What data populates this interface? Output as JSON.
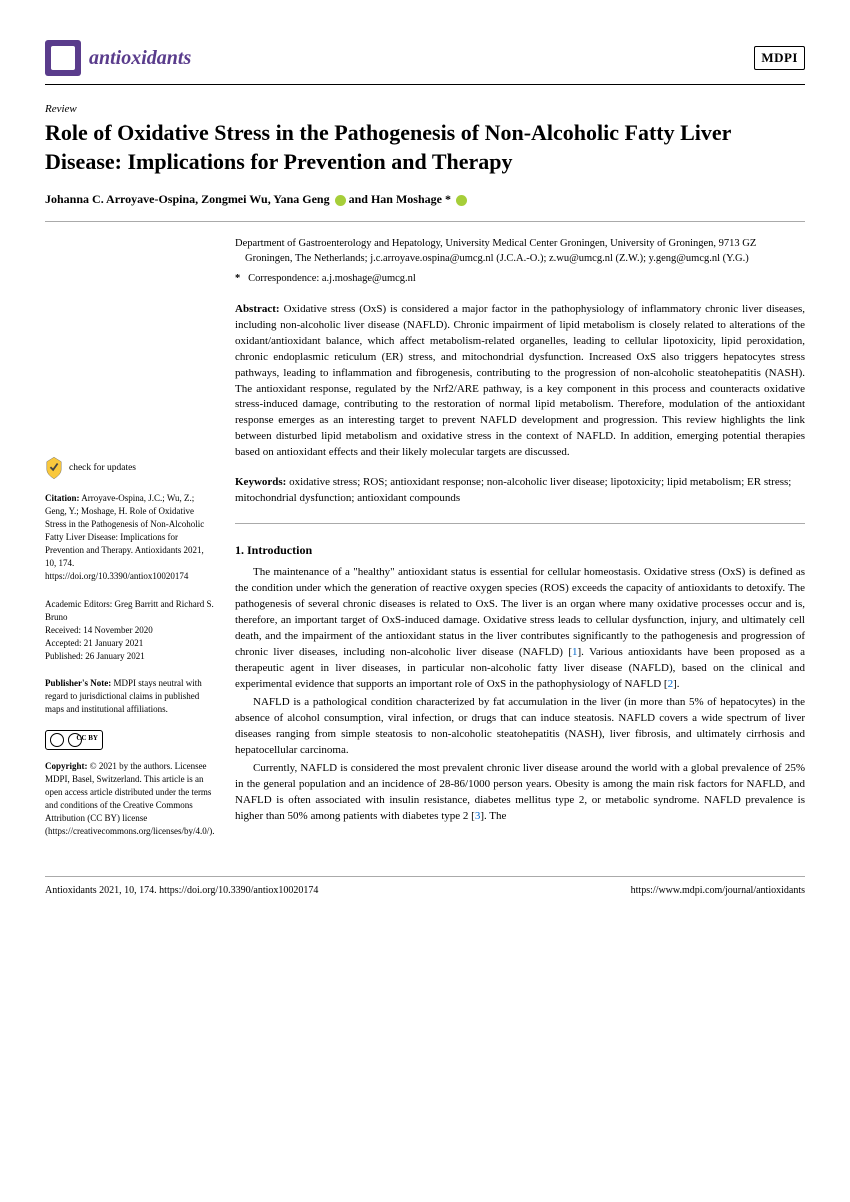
{
  "journal": {
    "name": "antioxidants",
    "publisher": "MDPI",
    "logo_bg": "#5a3c8c"
  },
  "article": {
    "type": "Review",
    "title": "Role of Oxidative Stress in the Pathogenesis of Non-Alcoholic Fatty Liver Disease: Implications for Prevention and Therapy",
    "authors_html": "Johanna C. Arroyave-Ospina, Zongmei Wu, Yana Geng",
    "author_last": "and Han Moshage *",
    "affiliation": "Department of Gastroenterology and Hepatology, University Medical Center Groningen, University of Groningen, 9713 GZ Groningen, The Netherlands; j.c.arroyave.ospina@umcg.nl (J.C.A.-O.); z.wu@umcg.nl (Z.W.); y.geng@umcg.nl (Y.G.)",
    "correspondence_label": "*",
    "correspondence": "Correspondence: a.j.moshage@umcg.nl",
    "abstract_label": "Abstract:",
    "abstract": "Oxidative stress (OxS) is considered a major factor in the pathophysiology of inflammatory chronic liver diseases, including non-alcoholic liver disease (NAFLD). Chronic impairment of lipid metabolism is closely related to alterations of the oxidant/antioxidant balance, which affect metabolism-related organelles, leading to cellular lipotoxicity, lipid peroxidation, chronic endoplasmic reticulum (ER) stress, and mitochondrial dysfunction. Increased OxS also triggers hepatocytes stress pathways, leading to inflammation and fibrogenesis, contributing to the progression of non-alcoholic steatohepatitis (NASH). The antioxidant response, regulated by the Nrf2/ARE pathway, is a key component in this process and counteracts oxidative stress-induced damage, contributing to the restoration of normal lipid metabolism. Therefore, modulation of the antioxidant response emerges as an interesting target to prevent NAFLD development and progression. This review highlights the link between disturbed lipid metabolism and oxidative stress in the context of NAFLD. In addition, emerging potential therapies based on antioxidant effects and their likely molecular targets are discussed.",
    "keywords_label": "Keywords:",
    "keywords": "oxidative stress; ROS; antioxidant response; non-alcoholic liver disease; lipotoxicity; lipid metabolism; ER stress; mitochondrial dysfunction; antioxidant compounds"
  },
  "sidebar": {
    "check_updates": "check for updates",
    "citation_label": "Citation:",
    "citation": "Arroyave-Ospina, J.C.; Wu, Z.; Geng, Y.; Moshage, H. Role of Oxidative Stress in the Pathogenesis of Non-Alcoholic Fatty Liver Disease: Implications for Prevention and Therapy. Antioxidants 2021, 10, 174. https://doi.org/10.3390/antiox10020174",
    "editors_label": "Academic Editors: Greg Barritt and Richard S. Bruno",
    "received": "Received: 14 November 2020",
    "accepted": "Accepted: 21 January 2021",
    "published": "Published: 26 January 2021",
    "publisher_note_label": "Publisher's Note:",
    "publisher_note": "MDPI stays neutral with regard to jurisdictional claims in published maps and institutional affiliations.",
    "copyright_label": "Copyright:",
    "copyright": "© 2021 by the authors. Licensee MDPI, Basel, Switzerland. This article is an open access article distributed under the terms and conditions of the Creative Commons Attribution (CC BY) license (https://creativecommons.org/licenses/by/4.0/)."
  },
  "body": {
    "section1_heading": "1. Introduction",
    "p1": "The maintenance of a \"healthy\" antioxidant status is essential for cellular homeostasis. Oxidative stress (OxS) is defined as the condition under which the generation of reactive oxygen species (ROS) exceeds the capacity of antioxidants to detoxify. The pathogenesis of several chronic diseases is related to OxS. The liver is an organ where many oxidative processes occur and is, therefore, an important target of OxS-induced damage. Oxidative stress leads to cellular dysfunction, injury, and ultimately cell death, and the impairment of the antioxidant status in the liver contributes significantly to the pathogenesis and progression of chronic liver diseases, including non-alcoholic liver disease (NAFLD) [1]. Various antioxidants have been proposed as a therapeutic agent in liver diseases, in particular non-alcoholic fatty liver disease (NAFLD), based on the clinical and experimental evidence that supports an important role of OxS in the pathophysiology of NAFLD [2].",
    "p2": "NAFLD is a pathological condition characterized by fat accumulation in the liver (in more than 5% of hepatocytes) in the absence of alcohol consumption, viral infection, or drugs that can induce steatosis. NAFLD covers a wide spectrum of liver diseases ranging from simple steatosis to non-alcoholic steatohepatitis (NASH), liver fibrosis, and ultimately cirrhosis and hepatocellular carcinoma.",
    "p3": "Currently, NAFLD is considered the most prevalent chronic liver disease around the world with a global prevalence of 25% in the general population and an incidence of 28-86/1000 person years. Obesity is among the main risk factors for NAFLD, and NAFLD is often associated with insulin resistance, diabetes mellitus type 2, or metabolic syndrome. NAFLD prevalence is higher than 50% among patients with diabetes type 2 [3]. The"
  },
  "footer": {
    "left": "Antioxidants 2021, 10, 174. https://doi.org/10.3390/antiox10020174",
    "right": "https://www.mdpi.com/journal/antioxidants"
  },
  "refs": {
    "r1": "1",
    "r2": "2",
    "r3": "3"
  }
}
